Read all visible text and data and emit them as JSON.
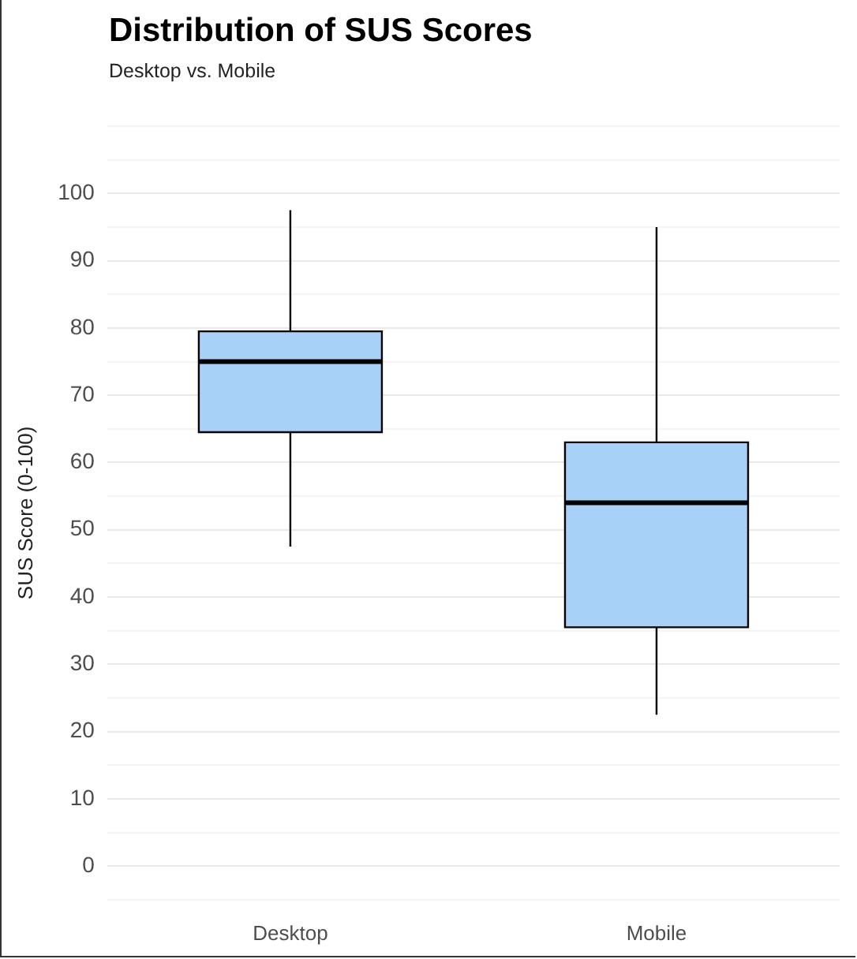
{
  "chart_data": {
    "type": "box",
    "title": "Distribution of SUS Scores",
    "subtitle": "Desktop vs. Mobile",
    "ylabel": "SUS Score (0-100)",
    "categories": [
      "Desktop",
      "Mobile"
    ],
    "color": "#a8d1f7",
    "boxes": [
      {
        "low": 47.5,
        "q1": 64.5,
        "median": 75,
        "q3": 79.5,
        "high": 97.5
      },
      {
        "low": 22.5,
        "q1": 35.5,
        "median": 54,
        "q3": 63,
        "high": 95
      }
    ],
    "ylim": [
      -5,
      110
    ],
    "yticks": [
      {
        "value": -5,
        "label": null
      },
      0,
      {
        "value": 5,
        "label": null
      },
      10,
      {
        "value": 15,
        "label": null
      },
      20,
      {
        "value": 25,
        "label": null
      },
      30,
      {
        "value": 35,
        "label": null
      },
      40,
      {
        "value": 45,
        "label": null
      },
      50,
      {
        "value": 55,
        "label": null
      },
      60,
      {
        "value": 65,
        "label": null
      },
      70,
      {
        "value": 75,
        "label": null
      },
      80,
      {
        "value": 85,
        "label": null
      },
      90,
      {
        "value": 95,
        "label": null
      },
      100,
      {
        "value": 105,
        "label": null
      },
      {
        "value": 110,
        "label": null
      }
    ],
    "grid": true
  }
}
